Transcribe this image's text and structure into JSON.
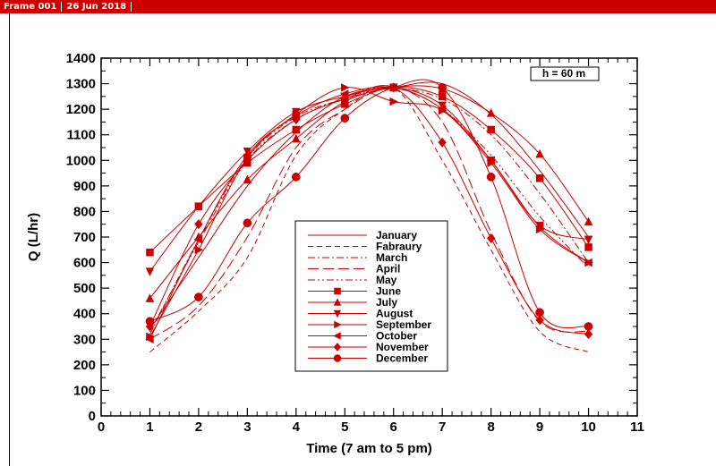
{
  "frame": {
    "label": "Frame 001",
    "date": "26 Jun 2018"
  },
  "chart_data": {
    "type": "line",
    "xlabel": "Time (7 am to 5 pm)",
    "ylabel": "Q (L/hr)",
    "xlim": [
      0,
      11
    ],
    "ylim": [
      0,
      1400
    ],
    "xticks": [
      0,
      1,
      2,
      3,
      4,
      5,
      6,
      7,
      8,
      9,
      10,
      11
    ],
    "yticks": [
      0,
      100,
      200,
      300,
      400,
      500,
      600,
      700,
      800,
      900,
      1000,
      1100,
      1200,
      1300,
      1400
    ],
    "annotation": "h = 60 m",
    "legend_position": "center",
    "line_color": "#cc0000",
    "x": [
      1,
      2,
      3,
      4,
      5,
      6,
      7,
      8,
      9,
      10
    ],
    "series": [
      {
        "name": "January",
        "style": "solid",
        "marker": "none",
        "values": [
          340,
          620,
          900,
          1110,
          1250,
          1285,
          1300,
          1180,
          960,
          700
        ]
      },
      {
        "name": "Fabraury",
        "style": "dash",
        "marker": "none",
        "values": [
          250,
          410,
          620,
          1020,
          1200,
          1285,
          1000,
          650,
          330,
          250
        ]
      },
      {
        "name": "March",
        "style": "dashdot",
        "marker": "none",
        "values": [
          320,
          690,
          1010,
          1170,
          1240,
          1280,
          1240,
          1100,
          870,
          600
        ]
      },
      {
        "name": "April",
        "style": "longdash",
        "marker": "none",
        "values": [
          300,
          430,
          700,
          1050,
          1200,
          1285,
          1150,
          720,
          370,
          330
        ]
      },
      {
        "name": "May",
        "style": "dashdotdot",
        "marker": "none",
        "values": [
          330,
          680,
          1000,
          1160,
          1240,
          1285,
          1200,
          1020,
          780,
          580
        ]
      },
      {
        "name": "June",
        "style": "solid",
        "marker": "square",
        "values": [
          640,
          820,
          990,
          1120,
          1220,
          1285,
          1250,
          1120,
          930,
          660
        ]
      },
      {
        "name": "July",
        "style": "solid",
        "marker": "triangle-up",
        "values": [
          460,
          700,
          925,
          1085,
          1230,
          1285,
          1280,
          1185,
          1025,
          760
        ]
      },
      {
        "name": "August",
        "style": "solid",
        "marker": "triangle-down",
        "values": [
          565,
          820,
          1035,
          1190,
          1250,
          1285,
          1215,
          1000,
          745,
          690
        ]
      },
      {
        "name": "September",
        "style": "solid",
        "marker": "triangle-right",
        "values": [
          310,
          650,
          1010,
          1180,
          1285,
          1230,
          1195,
          990,
          730,
          600
        ]
      },
      {
        "name": "October",
        "style": "solid",
        "marker": "triangle-left",
        "values": [
          300,
          690,
          1020,
          1175,
          1260,
          1285,
          1200,
          1000,
          740,
          600
        ]
      },
      {
        "name": "November",
        "style": "solid",
        "marker": "diamond",
        "values": [
          350,
          750,
          1000,
          1160,
          1240,
          1285,
          1070,
          695,
          375,
          320
        ]
      },
      {
        "name": "December",
        "style": "solid",
        "marker": "circle",
        "values": [
          370,
          465,
          755,
          935,
          1165,
          1285,
          1285,
          935,
          405,
          350
        ]
      }
    ]
  }
}
